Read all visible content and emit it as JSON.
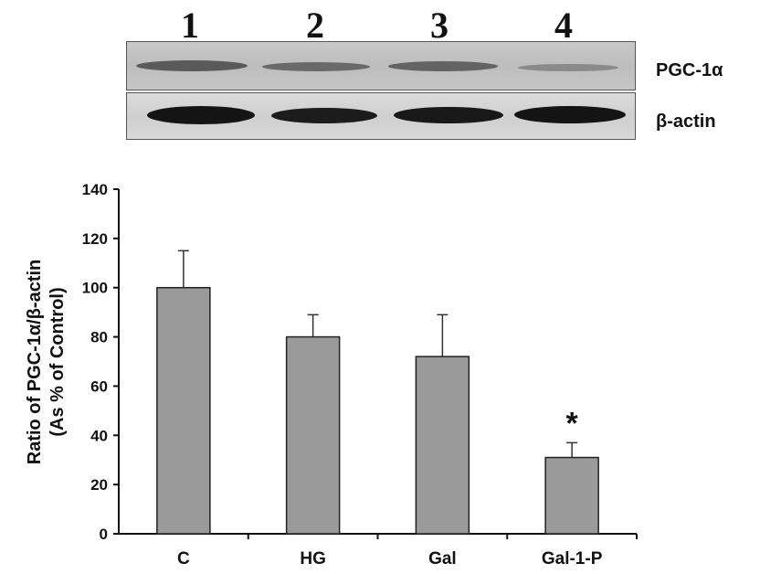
{
  "blot": {
    "lanes": [
      "1",
      "2",
      "3",
      "4"
    ],
    "labels": [
      "PGC-1α",
      "β-actin"
    ]
  },
  "chart_data": {
    "type": "bar",
    "categories": [
      "C",
      "HG",
      "Gal",
      "Gal-1-P"
    ],
    "values": [
      100,
      80,
      72,
      31
    ],
    "errors": [
      15,
      9,
      17,
      6
    ],
    "significance": [
      "",
      "",
      "",
      "*"
    ],
    "ylabel_lines": [
      "Ratio of PGC-1α/β-actin",
      "(As % of Control)"
    ],
    "ylim": [
      0,
      140
    ],
    "yticks": [
      0,
      20,
      40,
      60,
      80,
      100,
      120,
      140
    ],
    "bar_color": "#9a9a9a",
    "grid": false
  }
}
